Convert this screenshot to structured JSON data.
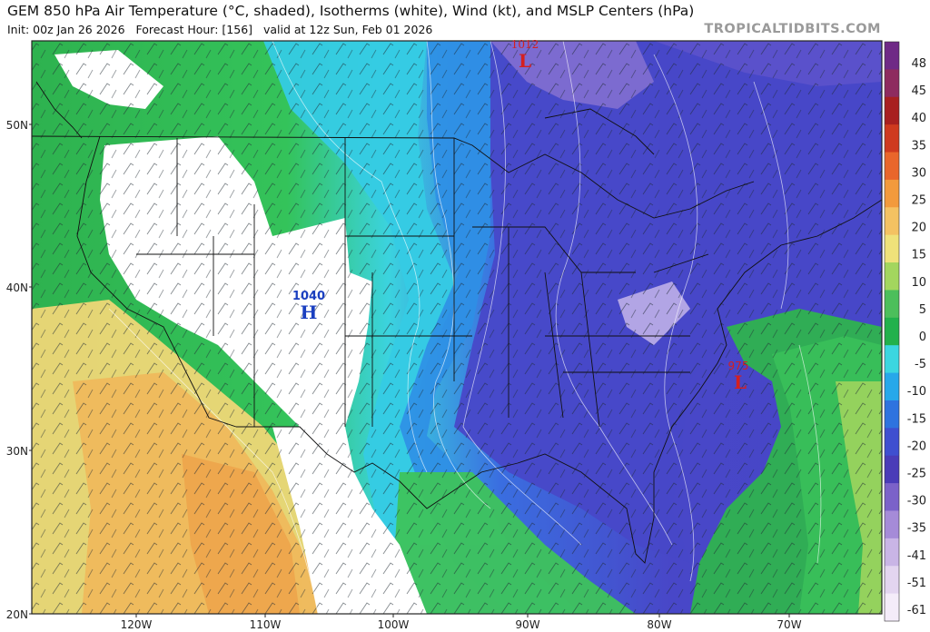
{
  "header": {
    "title": "GEM 850 hPa Air Temperature (°C, shaded), Isotherms (white), Wind (kt), and MSLP Centers (hPa)",
    "init": "Init: 00z Jan 26 2026",
    "forecast_hour": "Forecast Hour: [156]",
    "valid": "valid at 12z Sun, Feb 01 2026",
    "brand": "TROPICALTIDBITS.COM"
  },
  "map": {
    "lat_labels": [
      "50N",
      "40N",
      "30N",
      "20N"
    ],
    "lon_labels": [
      "120W",
      "110W",
      "100W",
      "90W",
      "80W",
      "70W"
    ],
    "pressure_centers": [
      {
        "type": "L",
        "value": "1012",
        "color": "#d42020"
      },
      {
        "type": "H",
        "value": "1040",
        "color": "#1a3fc0"
      },
      {
        "type": "L",
        "value": "975",
        "color": "#d42020"
      }
    ]
  },
  "colorbar": {
    "labels": [
      "48",
      "45",
      "40",
      "35",
      "30",
      "25",
      "20",
      "15",
      "10",
      "5",
      "0",
      "-5",
      "-10",
      "-15",
      "-20",
      "-25",
      "-30",
      "-35",
      "-41",
      "-51",
      "-61"
    ],
    "colors": [
      "#6f2a86",
      "#8e2b5f",
      "#a82020",
      "#cf3a1f",
      "#e9662b",
      "#f29a3c",
      "#f4c262",
      "#efe27a",
      "#a3d65e",
      "#4cbf5b",
      "#22b14c",
      "#3bd6e0",
      "#27a8ea",
      "#2e73df",
      "#3f4fd0",
      "#4a3cb8",
      "#7b62c9",
      "#a58bd8",
      "#c9b5e6",
      "#e3d5f0",
      "#f4ecf9"
    ]
  }
}
